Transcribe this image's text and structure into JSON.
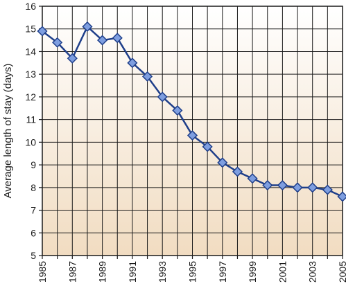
{
  "chart_data": {
    "type": "line",
    "title": "",
    "xlabel": "",
    "ylabel": "Average length of stay (days)",
    "xlim": [
      1985,
      2005
    ],
    "ylim": [
      5,
      16
    ],
    "x_ticks_labeled": [
      1985,
      1987,
      1989,
      1991,
      1993,
      1995,
      1997,
      1999,
      2001,
      2003,
      2005
    ],
    "y_ticks": [
      5,
      6,
      7,
      8,
      9,
      10,
      11,
      12,
      13,
      14,
      15,
      16
    ],
    "grid": "on",
    "legend": "none",
    "series": [
      {
        "x": [
          1985,
          1986,
          1987,
          1988,
          1989,
          1990,
          1991,
          1992,
          1993,
          1994,
          1995,
          1996,
          1997,
          1998,
          1999,
          2000,
          2001,
          2002,
          2003,
          2004,
          2005
        ],
        "values": [
          14.9,
          14.4,
          13.7,
          15.1,
          14.5,
          14.6,
          13.5,
          12.9,
          12.0,
          11.4,
          10.3,
          9.8,
          9.1,
          8.7,
          8.4,
          8.1,
          8.1,
          8.0,
          8.0,
          7.9,
          7.6
        ]
      }
    ]
  },
  "colors": {
    "line": "#1f3f8a",
    "marker_fill": "#7e9ee0",
    "marker_stroke": "#1f3f8a",
    "grid": "#1a1a1a",
    "plot_bg_top": "#ffffff",
    "plot_bg_bottom": "#f1dcc1",
    "text": "#1a1a1a"
  }
}
